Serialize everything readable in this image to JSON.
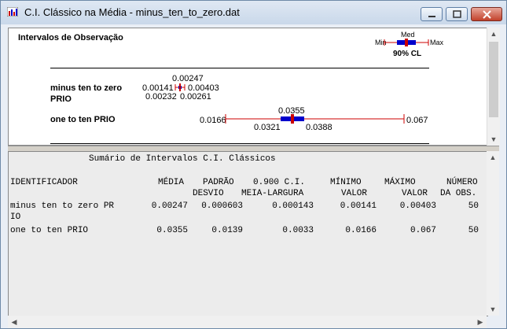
{
  "window": {
    "title": "C.I. Clássico na Média - minus_ten_to_zero.dat"
  },
  "graph": {
    "heading": "Intervalos de Observação",
    "legend": {
      "med": "Med",
      "min": "Min",
      "max": "Max",
      "ci": "90% CL"
    },
    "rows": [
      {
        "label_line1": "minus ten to zero",
        "label_line2": "PRIO",
        "mean": "0.00247",
        "min": "0.00141",
        "max": "0.00403",
        "ci_low": "0.00232",
        "ci_high": "0.00261"
      },
      {
        "label_line1": "one to ten PRIO",
        "label_line2": "",
        "mean": "0.0355",
        "min": "0.0166",
        "max": "0.067",
        "ci_low": "0.0321",
        "ci_high": "0.0388"
      }
    ]
  },
  "report": {
    "title": "Sumário de Intervalos C.I. Clássicos",
    "headers": {
      "identificador": "IDENTIFICADOR",
      "media": "MÉDIA",
      "padrao": "PADRÃO",
      "padrao2": "DESVIO",
      "ci": "0.900 C.I.",
      "ci2": "MEIA-LARGURA",
      "minimo": "MÍNIMO",
      "minimo2": "VALOR",
      "maximo": "MÁXIMO",
      "maximo2": "VALOR",
      "numero": "NÚMERO",
      "numero2": "DA OBS."
    },
    "rows": [
      {
        "id": "minus ten to zero PR",
        "id_cont": "IO",
        "media": "0.00247",
        "desvio": "0.000603",
        "meia": "0.000143",
        "min": "0.00141",
        "max": "0.00403",
        "n": "50"
      },
      {
        "id": "one to ten PRIO",
        "id_cont": "",
        "media": "0.0355",
        "desvio": "0.0139",
        "meia": "0.0033",
        "min": "0.0166",
        "max": "0.067",
        "n": "50"
      }
    ]
  }
}
